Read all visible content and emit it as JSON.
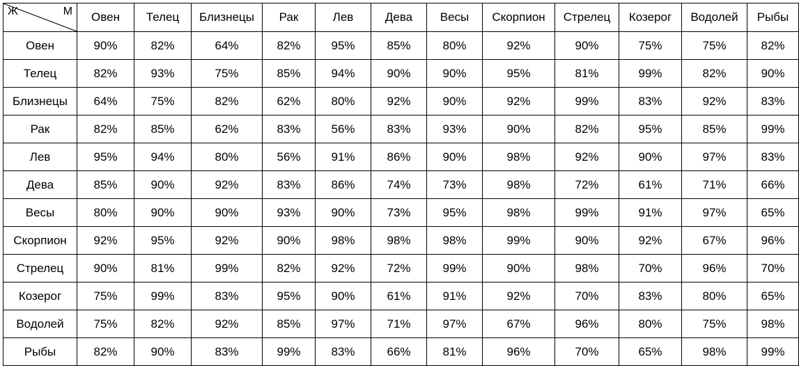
{
  "corner": {
    "female": "Ж",
    "male": "М"
  },
  "columns": [
    "Овен",
    "Телец",
    "Близнецы",
    "Рак",
    "Лев",
    "Дева",
    "Весы",
    "Скорпион",
    "Стрелец",
    "Козерог",
    "Водолей",
    "Рыбы"
  ],
  "rows": [
    {
      "sign": "Овен",
      "values": [
        "90%",
        "82%",
        "64%",
        "82%",
        "95%",
        "85%",
        "80%",
        "92%",
        "90%",
        "75%",
        "75%",
        "82%"
      ]
    },
    {
      "sign": "Телец",
      "values": [
        "82%",
        "93%",
        "75%",
        "85%",
        "94%",
        "90%",
        "90%",
        "95%",
        "81%",
        "99%",
        "82%",
        "90%"
      ]
    },
    {
      "sign": "Близнецы",
      "values": [
        "64%",
        "75%",
        "82%",
        "62%",
        "80%",
        "92%",
        "90%",
        "92%",
        "99%",
        "83%",
        "92%",
        "83%"
      ]
    },
    {
      "sign": "Рак",
      "values": [
        "82%",
        "85%",
        "62%",
        "83%",
        "56%",
        "83%",
        "93%",
        "90%",
        "82%",
        "95%",
        "85%",
        "99%"
      ]
    },
    {
      "sign": "Лев",
      "values": [
        "95%",
        "94%",
        "80%",
        "56%",
        "91%",
        "86%",
        "90%",
        "98%",
        "92%",
        "90%",
        "97%",
        "83%"
      ]
    },
    {
      "sign": "Дева",
      "values": [
        "85%",
        "90%",
        "92%",
        "83%",
        "86%",
        "74%",
        "73%",
        "98%",
        "72%",
        "61%",
        "71%",
        "66%"
      ]
    },
    {
      "sign": "Весы",
      "values": [
        "80%",
        "90%",
        "90%",
        "93%",
        "90%",
        "73%",
        "95%",
        "98%",
        "99%",
        "91%",
        "97%",
        "65%"
      ]
    },
    {
      "sign": "Скорпион",
      "values": [
        "92%",
        "95%",
        "92%",
        "90%",
        "98%",
        "98%",
        "98%",
        "99%",
        "90%",
        "92%",
        "67%",
        "96%"
      ]
    },
    {
      "sign": "Стрелец",
      "values": [
        "90%",
        "81%",
        "99%",
        "82%",
        "92%",
        "72%",
        "99%",
        "90%",
        "98%",
        "70%",
        "96%",
        "70%"
      ]
    },
    {
      "sign": "Козерог",
      "values": [
        "75%",
        "99%",
        "83%",
        "95%",
        "90%",
        "61%",
        "91%",
        "92%",
        "70%",
        "83%",
        "80%",
        "65%"
      ]
    },
    {
      "sign": "Водолей",
      "values": [
        "75%",
        "82%",
        "92%",
        "85%",
        "97%",
        "71%",
        "97%",
        "67%",
        "96%",
        "80%",
        "75%",
        "98%"
      ]
    },
    {
      "sign": "Рыбы",
      "values": [
        "82%",
        "90%",
        "83%",
        "99%",
        "83%",
        "66%",
        "81%",
        "96%",
        "70%",
        "65%",
        "98%",
        "99%"
      ]
    }
  ]
}
